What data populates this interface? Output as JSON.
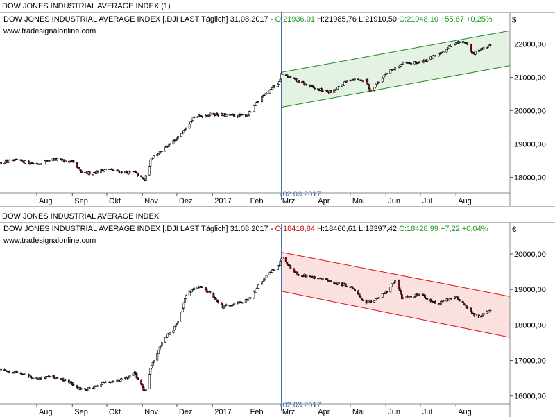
{
  "header": {
    "title_top": "DOW JONES INDUSTRIAL AVERAGE INDEX (1)",
    "title_bottom": "DOW JONES INDUSTRIAL AVERAGE INDEX"
  },
  "colors": {
    "up_candle": "#ffffff",
    "down_candle": "#8b1010",
    "wick": "#000000",
    "channel_up_line": "#1a8a1a",
    "channel_up_fill": "#e4f2e4",
    "channel_down_line": "#e01010",
    "channel_down_fill": "#fbe0e0",
    "marker_line": "#3060c0"
  },
  "panels": [
    {
      "info_name": "DOW JONES INDUSTRIAL AVERAGE INDEX [.DJI LAST Täglich] 31.08.2017 - ",
      "info_open": "O:21936,01",
      "info_hlc": " H:21985,76 L:21910,50 ",
      "info_close": "C:21948,10 +55,67 +0,25%",
      "website": "www.tradesignalonline.com",
      "currency_symbol": "$",
      "marker_date": "02.03.2017"
    },
    {
      "info_name": "DOW JONES INDUSTRIAL AVERAGE INDEX [.DJI LAST Täglich] 31.08.2017 - ",
      "info_open": "O:18418,84",
      "info_hlc": " H:18460,61 L:18397,42 ",
      "info_close": "C:18428,99 +7,22 +0,04%",
      "website": "www.tradesignalonline.com",
      "currency_symbol": "€",
      "marker_date": "02.03.2017"
    }
  ],
  "chart_data": [
    {
      "type": "candlestick",
      "title": "DOW JONES INDUSTRIAL AVERAGE INDEX (1)",
      "unit": "$",
      "x_labels": [
        "Aug",
        "Sep",
        "Okt",
        "Nov",
        "Dez",
        "2017",
        "Feb",
        "Mrz",
        "Apr",
        "Mai",
        "Jun",
        "Jul",
        "Aug"
      ],
      "y_ticks": [
        "18000,00",
        "19000,00",
        "20000,00",
        "21000,00",
        "22000,00"
      ],
      "ylim": [
        17550,
        22550
      ],
      "marker": {
        "date": "02.03.2017"
      },
      "channel": {
        "type": "rising",
        "upper": [
          21150,
          22400
        ],
        "lower": [
          20100,
          21350
        ]
      },
      "close_path": [
        [
          "2016-07-01",
          18450
        ],
        [
          "2016-07-15",
          18500
        ],
        [
          "2016-08-01",
          18400
        ],
        [
          "2016-08-15",
          18550
        ],
        [
          "2016-09-01",
          18450
        ],
        [
          "2016-09-10",
          18100
        ],
        [
          "2016-09-20",
          18150
        ],
        [
          "2016-10-01",
          18250
        ],
        [
          "2016-10-15",
          18150
        ],
        [
          "2016-10-25",
          18150
        ],
        [
          "2016-11-03",
          17900
        ],
        [
          "2016-11-09",
          18600
        ],
        [
          "2016-11-20",
          18850
        ],
        [
          "2016-12-01",
          19150
        ],
        [
          "2016-12-15",
          19800
        ],
        [
          "2017-01-01",
          19900
        ],
        [
          "2017-01-15",
          19850
        ],
        [
          "2017-01-31",
          19850
        ],
        [
          "2017-02-15",
          20500
        ],
        [
          "2017-02-28",
          20850
        ],
        [
          "2017-03-02",
          21100
        ],
        [
          "2017-03-15",
          20900
        ],
        [
          "2017-04-01",
          20650
        ],
        [
          "2017-04-15",
          20550
        ],
        [
          "2017-05-01",
          20950
        ],
        [
          "2017-05-15",
          20900
        ],
        [
          "2017-05-18",
          20600
        ],
        [
          "2017-06-01",
          21100
        ],
        [
          "2017-06-15",
          21400
        ],
        [
          "2017-07-01",
          21450
        ],
        [
          "2017-07-15",
          21650
        ],
        [
          "2017-08-01",
          22050
        ],
        [
          "2017-08-10",
          22050
        ],
        [
          "2017-08-15",
          21700
        ],
        [
          "2017-08-31",
          21950
        ]
      ]
    },
    {
      "type": "candlestick",
      "title": "DOW JONES INDUSTRIAL AVERAGE INDEX",
      "unit": "€",
      "x_labels": [
        "Aug",
        "Sep",
        "Okt",
        "Nov",
        "Dez",
        "2017",
        "Feb",
        "Mrz",
        "Apr",
        "Mai",
        "Jun",
        "Jul",
        "Aug"
      ],
      "y_ticks": [
        "16000,00",
        "17000,00",
        "18000,00",
        "19000,00",
        "20000,00"
      ],
      "ylim": [
        15700,
        20450
      ],
      "marker": {
        "date": "02.03.2017"
      },
      "channel": {
        "type": "falling",
        "upper": [
          20050,
          18800
        ],
        "lower": [
          18950,
          17650
        ]
      },
      "close_path": [
        [
          "2016-07-01",
          16750
        ],
        [
          "2016-07-15",
          16650
        ],
        [
          "2016-08-01",
          16500
        ],
        [
          "2016-08-15",
          16550
        ],
        [
          "2016-09-01",
          16350
        ],
        [
          "2016-09-10",
          16150
        ],
        [
          "2016-09-20",
          16250
        ],
        [
          "2016-10-01",
          16400
        ],
        [
          "2016-10-15",
          16450
        ],
        [
          "2016-10-25",
          16650
        ],
        [
          "2016-11-03",
          16100
        ],
        [
          "2016-11-09",
          16900
        ],
        [
          "2016-11-20",
          17600
        ],
        [
          "2016-12-01",
          18000
        ],
        [
          "2016-12-10",
          18900
        ],
        [
          "2016-12-20",
          19100
        ],
        [
          "2017-01-01",
          18850
        ],
        [
          "2017-01-10",
          18500
        ],
        [
          "2017-01-20",
          18600
        ],
        [
          "2017-02-01",
          18700
        ],
        [
          "2017-02-15",
          19300
        ],
        [
          "2017-02-28",
          19700
        ],
        [
          "2017-03-02",
          19900
        ],
        [
          "2017-03-15",
          19450
        ],
        [
          "2017-04-01",
          19350
        ],
        [
          "2017-04-15",
          19200
        ],
        [
          "2017-05-01",
          19100
        ],
        [
          "2017-05-15",
          18600
        ],
        [
          "2017-06-01",
          18900
        ],
        [
          "2017-06-10",
          19300
        ],
        [
          "2017-06-15",
          18750
        ],
        [
          "2017-07-01",
          18850
        ],
        [
          "2017-07-15",
          18600
        ],
        [
          "2017-08-01",
          18800
        ],
        [
          "2017-08-20",
          18200
        ],
        [
          "2017-08-31",
          18430
        ]
      ]
    }
  ]
}
